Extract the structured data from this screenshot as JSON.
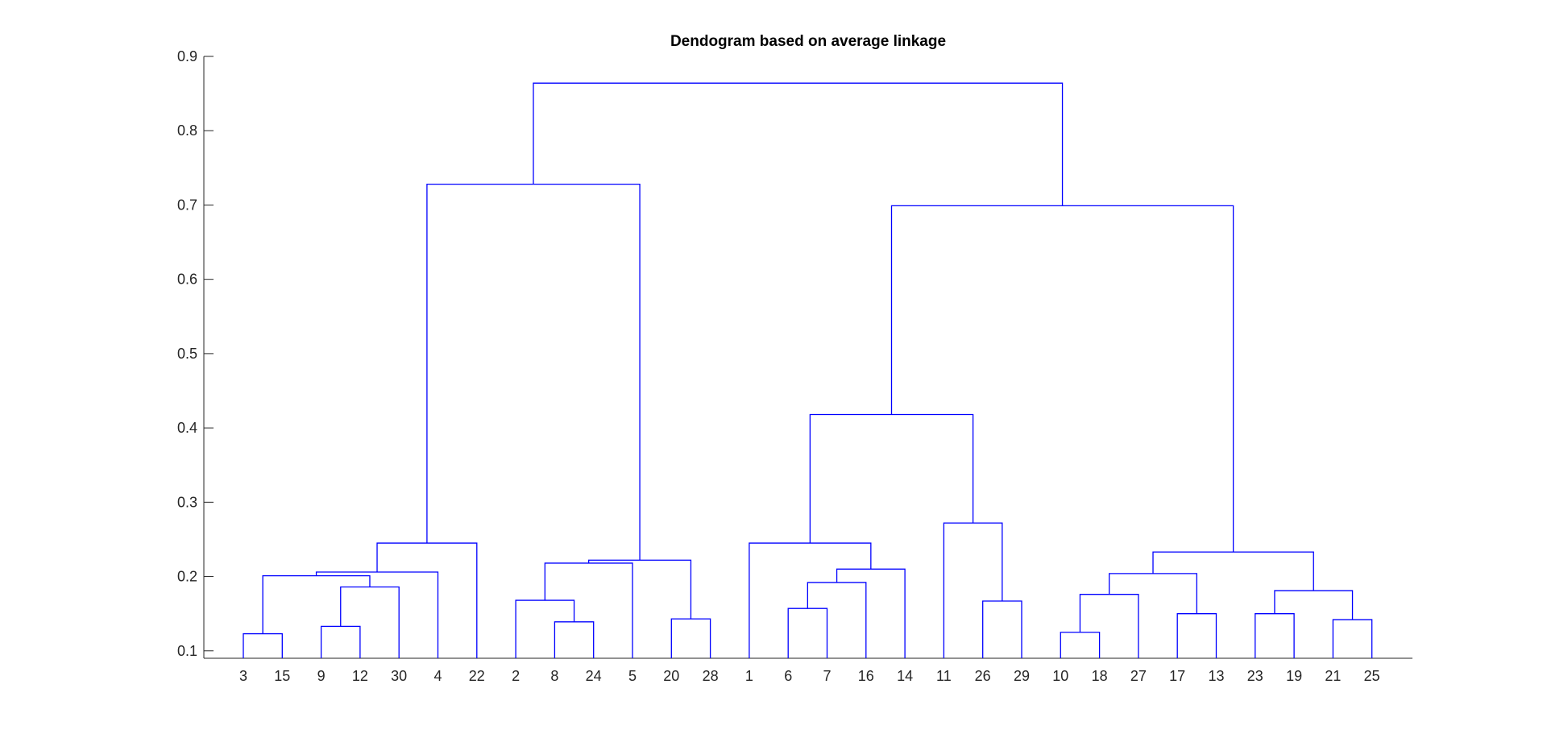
{
  "chart_data": {
    "type": "dendrogram",
    "title": "Dendogram based on average linkage",
    "xlabel": "",
    "ylabel": "",
    "ylim": [
      0.1,
      0.9
    ],
    "yticks": [
      0.1,
      0.2,
      0.3,
      0.4,
      0.5,
      0.6,
      0.7,
      0.8,
      0.9
    ],
    "leaf_order": [
      "3",
      "15",
      "9",
      "12",
      "30",
      "4",
      "22",
      "2",
      "8",
      "24",
      "5",
      "20",
      "28",
      "1",
      "6",
      "7",
      "16",
      "14",
      "11",
      "26",
      "29",
      "10",
      "18",
      "27",
      "17",
      "13",
      "23",
      "19",
      "21",
      "25"
    ],
    "merges": [
      {
        "left": "3",
        "right": "15",
        "height": 0.123
      },
      {
        "left": "9",
        "right": "12",
        "height": 0.133
      },
      {
        "left": "m2",
        "right": "30",
        "height": 0.186
      },
      {
        "left": "m1",
        "right": "m3",
        "height": 0.201
      },
      {
        "left": "m4",
        "right": "4",
        "height": 0.206
      },
      {
        "left": "m5",
        "right": "22",
        "height": 0.245
      },
      {
        "left": "8",
        "right": "24",
        "height": 0.139
      },
      {
        "left": "2",
        "right": "m7",
        "height": 0.168
      },
      {
        "left": "m8",
        "right": "5",
        "height": 0.218
      },
      {
        "left": "20",
        "right": "28",
        "height": 0.143
      },
      {
        "left": "m9",
        "right": "m10",
        "height": 0.222
      },
      {
        "left": "m6",
        "right": "m11",
        "height": 0.728
      },
      {
        "left": "6",
        "right": "7",
        "height": 0.157
      },
      {
        "left": "m13",
        "right": "16",
        "height": 0.192
      },
      {
        "left": "m14",
        "right": "14",
        "height": 0.21
      },
      {
        "left": "1",
        "right": "m15",
        "height": 0.245
      },
      {
        "left": "26",
        "right": "29",
        "height": 0.167
      },
      {
        "left": "11",
        "right": "m17",
        "height": 0.272
      },
      {
        "left": "m16",
        "right": "m18",
        "height": 0.418
      },
      {
        "left": "10",
        "right": "18",
        "height": 0.125
      },
      {
        "left": "m20",
        "right": "27",
        "height": 0.176
      },
      {
        "left": "17",
        "right": "13",
        "height": 0.15
      },
      {
        "left": "m21",
        "right": "m22",
        "height": 0.204
      },
      {
        "left": "23",
        "right": "19",
        "height": 0.15
      },
      {
        "left": "21",
        "right": "25",
        "height": 0.142
      },
      {
        "left": "m24",
        "right": "m25",
        "height": 0.181
      },
      {
        "left": "m23",
        "right": "m26",
        "height": 0.233
      },
      {
        "left": "m19",
        "right": "m27",
        "height": 0.699
      },
      {
        "left": "m12",
        "right": "m28",
        "height": 0.864
      }
    ],
    "colors": {
      "links": "#0000ff",
      "axis": "#262626",
      "text": "#262626"
    }
  }
}
